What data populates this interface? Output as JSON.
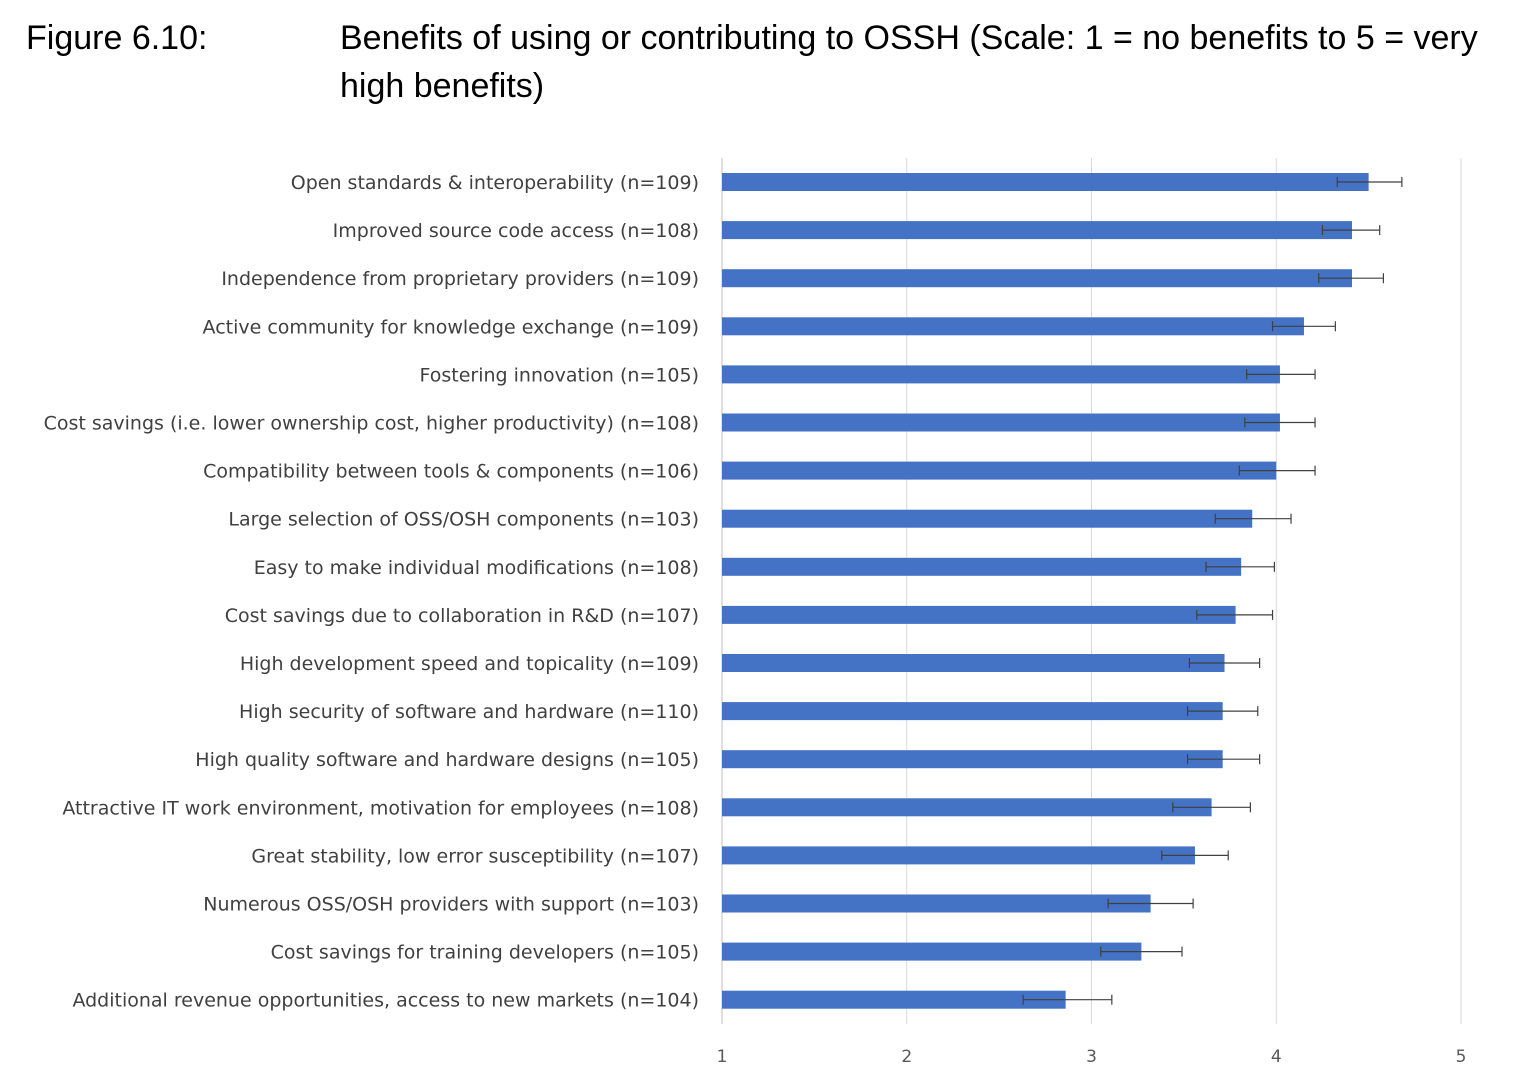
{
  "figure": {
    "label": "Figure 6.10:",
    "title": "Benefits of using or contributing to OSSH (Scale: 1 = no benefits to 5 = very high benefits)"
  },
  "chart_data": {
    "type": "bar",
    "orientation": "horizontal",
    "error_bars": true,
    "grid": true,
    "bar_color": "#4472C4",
    "categories": [
      "Open standards & interoperability (n=109)",
      "Improved source code access (n=108)",
      "Independence from proprietary providers (n=109)",
      "Active community for knowledge exchange (n=109)",
      "Fostering innovation (n=105)",
      "Cost savings (i.e. lower ownership cost, higher productivity) (n=108)",
      "Compatibility between tools & components (n=106)",
      "Large selection of OSS/OSH components (n=103)",
      "Easy to make individual modifications (n=108)",
      "Cost savings due to collaboration in R&D (n=107)",
      "High development speed and topicality (n=109)",
      "High security of software and hardware (n=110)",
      "High quality software and hardware designs (n=105)",
      "Attractive IT work environment, motivation for employees (n=108)",
      "Great stability, low error susceptibility (n=107)",
      "Numerous OSS/OSH providers with support (n=103)",
      "Cost savings for training developers (n=105)",
      "Additional revenue opportunities, access to new markets (n=104)"
    ],
    "values": [
      4.5,
      4.41,
      4.41,
      4.15,
      4.02,
      4.02,
      4.0,
      3.87,
      3.81,
      3.78,
      3.72,
      3.71,
      3.71,
      3.65,
      3.56,
      3.32,
      3.27,
      2.86
    ],
    "error_low": [
      4.33,
      4.25,
      4.23,
      3.98,
      3.84,
      3.83,
      3.8,
      3.67,
      3.62,
      3.57,
      3.53,
      3.52,
      3.52,
      3.44,
      3.38,
      3.09,
      3.05,
      2.63
    ],
    "error_high": [
      4.68,
      4.56,
      4.58,
      4.32,
      4.21,
      4.21,
      4.21,
      4.08,
      3.99,
      3.98,
      3.91,
      3.9,
      3.91,
      3.86,
      3.74,
      3.55,
      3.49,
      3.11
    ],
    "xlim": [
      1,
      5
    ],
    "xticks": [
      "1",
      "2",
      "3",
      "4",
      "5"
    ]
  }
}
